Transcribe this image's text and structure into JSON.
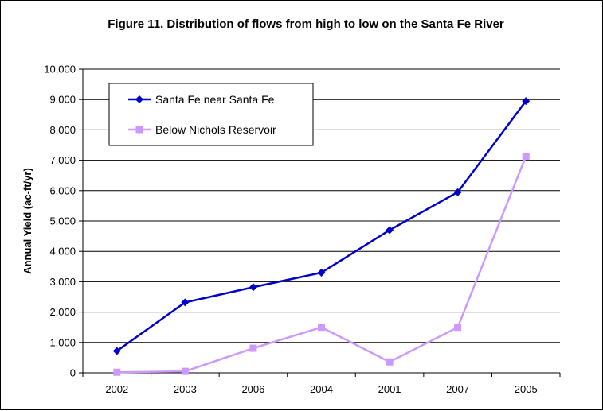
{
  "chart_data": {
    "type": "line",
    "title": "Figure 11.  Distribution of flows from high to low on the Santa Fe River",
    "xlabel": "",
    "ylabel": "Annual Yield (ac-ft/yr)",
    "categories": [
      "2002",
      "2003",
      "2006",
      "2004",
      "2001",
      "2007",
      "2005"
    ],
    "ylim": [
      0,
      10000
    ],
    "yticks": [
      0,
      1000,
      2000,
      3000,
      4000,
      5000,
      6000,
      7000,
      8000,
      9000,
      10000
    ],
    "ytick_labels": [
      "0",
      "1,000",
      "2,000",
      "3,000",
      "4,000",
      "5,000",
      "6,000",
      "7,000",
      "8,000",
      "9,000",
      "10,000"
    ],
    "grid": true,
    "legend_position": "top-left",
    "series": [
      {
        "name": "Santa Fe near Santa Fe",
        "values": [
          720,
          2320,
          2820,
          3300,
          4700,
          5950,
          8950
        ],
        "color": "#0000cc",
        "marker": "diamond"
      },
      {
        "name": "Below Nichols Reservoir",
        "values": [
          20,
          50,
          810,
          1500,
          360,
          1500,
          7130
        ],
        "color": "#cc99ff",
        "marker": "square"
      }
    ]
  }
}
